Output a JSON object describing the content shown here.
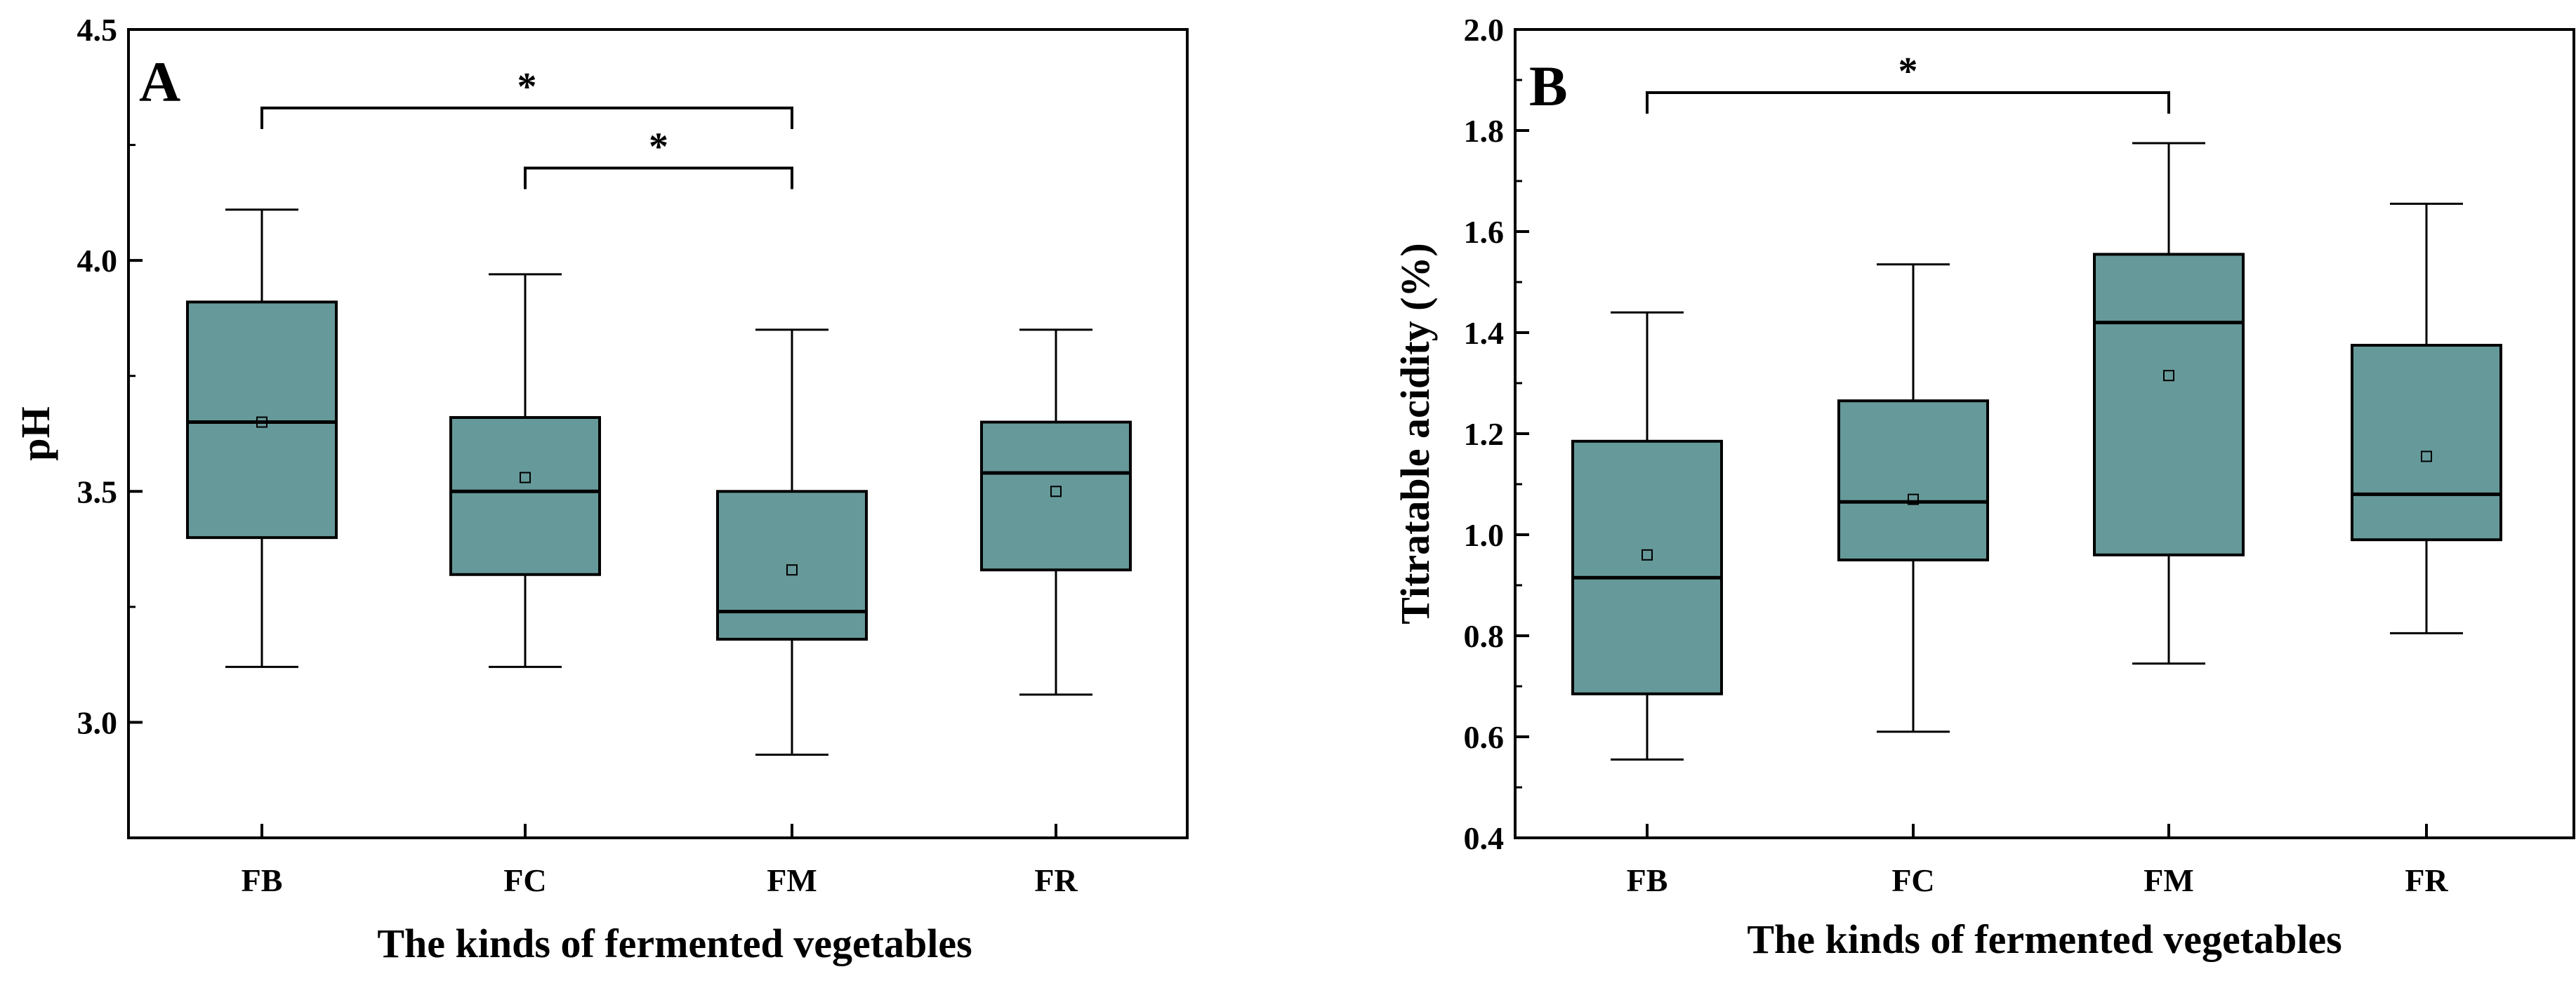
{
  "colors": {
    "box_fill": "#66999A",
    "stroke": "#000000",
    "background": "#FFFFFF"
  },
  "chart_data": [
    {
      "type": "box",
      "panel_label": "A",
      "title": "",
      "xlabel": "The kinds of fermented vegetables",
      "ylabel": "pH",
      "ylim": [
        2.75,
        4.5
      ],
      "yticks": [
        3.0,
        3.5,
        4.0,
        4.5
      ],
      "ytick_labels": [
        "3.0",
        "3.5",
        "4.0",
        "4.5"
      ],
      "categories": [
        "FB",
        "FC",
        "FM",
        "FR"
      ],
      "boxes": [
        {
          "name": "FB",
          "whisker_low": 3.12,
          "q1": 3.4,
          "median": 3.65,
          "q3": 3.91,
          "whisker_high": 4.11,
          "mean": 3.65
        },
        {
          "name": "FC",
          "whisker_low": 3.12,
          "q1": 3.32,
          "median": 3.5,
          "q3": 3.66,
          "whisker_high": 3.97,
          "mean": 3.53
        },
        {
          "name": "FM",
          "whisker_low": 2.93,
          "q1": 3.18,
          "median": 3.24,
          "q3": 3.5,
          "whisker_high": 3.85,
          "mean": 3.33
        },
        {
          "name": "FR",
          "whisker_low": 3.06,
          "q1": 3.33,
          "median": 3.54,
          "q3": 3.65,
          "whisker_high": 3.85,
          "mean": 3.5
        }
      ],
      "significance": [
        {
          "from": "FB",
          "to": "FM",
          "level": 4.33,
          "label": "*"
        },
        {
          "from": "FC",
          "to": "FM",
          "level": 4.2,
          "label": "*"
        }
      ]
    },
    {
      "type": "box",
      "panel_label": "B",
      "title": "",
      "xlabel": "The kinds of fermented vegetables",
      "ylabel": "Titratable acidity (%)",
      "ylim": [
        0.4,
        2.0
      ],
      "yticks": [
        0.4,
        0.6,
        0.8,
        1.0,
        1.2,
        1.4,
        1.6,
        1.8,
        2.0
      ],
      "ytick_labels": [
        "0.4",
        "0.6",
        "0.8",
        "1.0",
        "1.2",
        "1.4",
        "1.6",
        "1.8",
        "2.0"
      ],
      "categories": [
        "FB",
        "FC",
        "FM",
        "FR"
      ],
      "boxes": [
        {
          "name": "FB",
          "whisker_low": 0.555,
          "q1": 0.685,
          "median": 0.915,
          "q3": 1.185,
          "whisker_high": 1.44,
          "mean": 0.96
        },
        {
          "name": "FC",
          "whisker_low": 0.61,
          "q1": 0.95,
          "median": 1.065,
          "q3": 1.265,
          "whisker_high": 1.535,
          "mean": 1.07
        },
        {
          "name": "FM",
          "whisker_low": 0.745,
          "q1": 0.96,
          "median": 1.42,
          "q3": 1.555,
          "whisker_high": 1.775,
          "mean": 1.315
        },
        {
          "name": "FR",
          "whisker_low": 0.805,
          "q1": 0.99,
          "median": 1.08,
          "q3": 1.375,
          "whisker_high": 1.655,
          "mean": 1.155
        }
      ],
      "significance": [
        {
          "from": "FB",
          "to": "FM",
          "level": 1.875,
          "label": "*"
        }
      ]
    }
  ]
}
